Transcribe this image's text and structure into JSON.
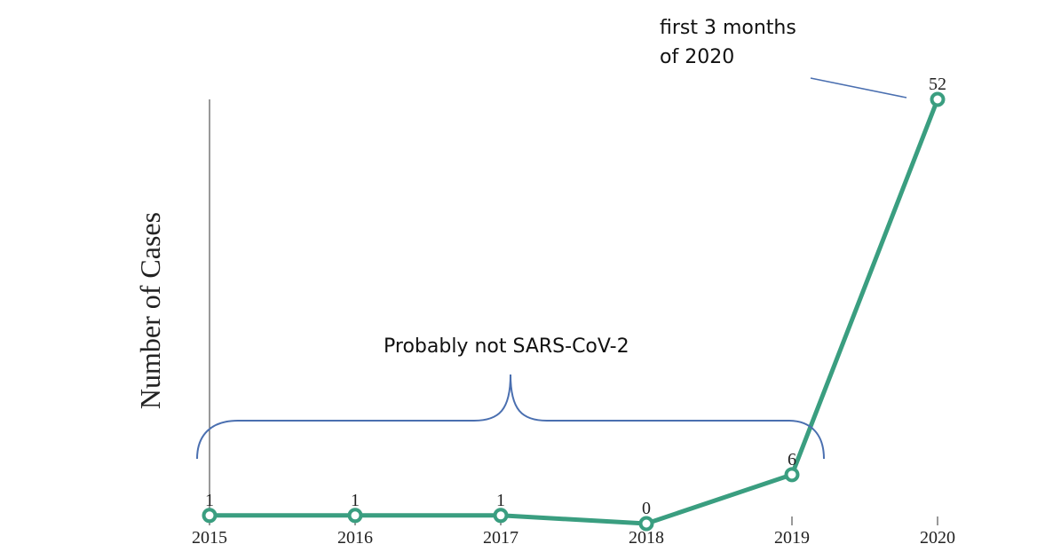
{
  "chart_data": {
    "type": "line",
    "title": "",
    "xlabel": "",
    "ylabel": "Number of Cases",
    "categories": [
      "2015",
      "2016",
      "2017",
      "2018",
      "2019",
      "2020"
    ],
    "series": [
      {
        "values": [
          1,
          1,
          1,
          0,
          6,
          52
        ]
      }
    ],
    "data_labels": [
      "1",
      "1",
      "1",
      "0",
      "6",
      "52"
    ],
    "ylim": [
      0,
      52
    ],
    "grid": false,
    "line_color": "#3a9e80",
    "annotations": {
      "bracket": {
        "text": "Probably not SARS-CoV-2",
        "color": "#4a6fb0"
      },
      "callout": {
        "lines": [
          "first 3 months",
          "of 2020"
        ],
        "color": "#4a6fb0"
      }
    }
  }
}
